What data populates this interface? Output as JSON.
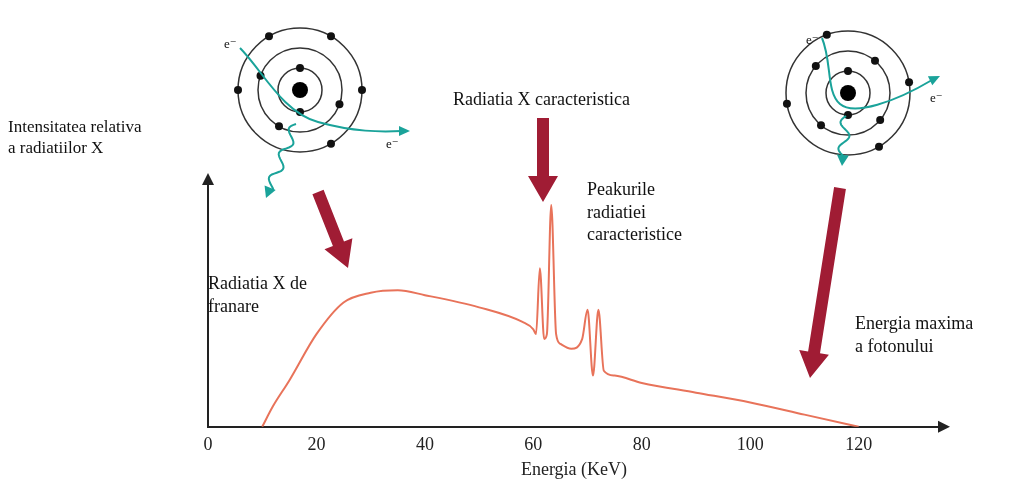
{
  "chart_data": {
    "type": "line",
    "y_label": "Intensitatea relativa\na radiatiilor X",
    "x_label": "Energia (KeV)",
    "x": [
      10,
      12,
      15,
      20,
      25,
      30,
      35,
      40,
      50,
      58,
      60,
      60.5,
      61.2,
      62,
      62.5,
      63.3,
      64.2,
      65,
      67,
      69,
      70,
      71,
      72,
      73,
      75,
      80,
      90,
      100,
      110,
      120
    ],
    "values": [
      0,
      8.5,
      19,
      38,
      51,
      55,
      56,
      54,
      49,
      43,
      40,
      38,
      65,
      36,
      38,
      91,
      38,
      34,
      32,
      36,
      48,
      21,
      48,
      23,
      21,
      18,
      14,
      10,
      5,
      0
    ],
    "color": "#e8735a",
    "xlim": [
      0,
      135
    ],
    "xticks": [
      0,
      20,
      40,
      60,
      80,
      100,
      120
    ],
    "ylim": [
      0,
      100
    ],
    "tick_labels": "x",
    "grid": false,
    "annotations": [
      "Radiatia X caracteristica",
      "Peakurile\nradiatiei\ncaracteristice",
      "Radiatia X de\nfranare",
      "Energia maxima\na fotonului"
    ]
  },
  "diagram": {
    "electron_label": "e⁻"
  }
}
